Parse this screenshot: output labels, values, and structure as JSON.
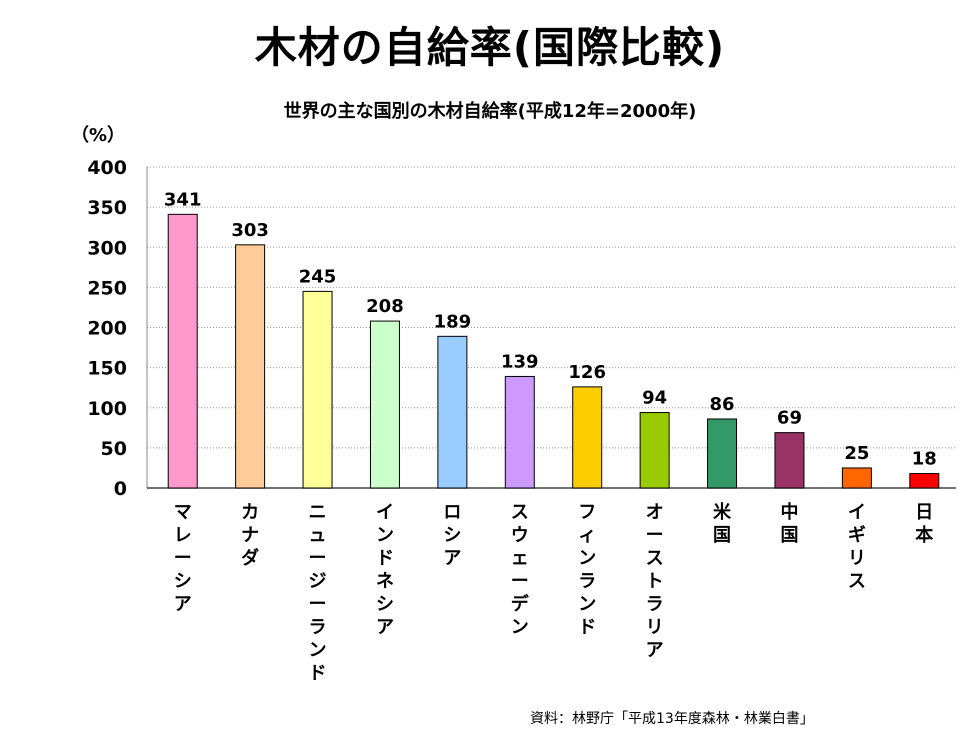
{
  "title": "木材の自給率(国際比較)",
  "subtitle": "世界の主な国別の木材自給率(平成12年=2000年)",
  "source": "資料：林野庁「平成13年度森林・林業白書」",
  "chart_data": {
    "type": "bar",
    "unit_label": "（%）",
    "categories": [
      "マレーシア",
      "カナダ",
      "ニュージーランド",
      "インドネシア",
      "ロシア",
      "スウェーデン",
      "フィンランド",
      "オーストラリア",
      "米国",
      "中国",
      "イギリス",
      "日本"
    ],
    "values": [
      341,
      303,
      245,
      208,
      189,
      139,
      126,
      94,
      86,
      69,
      25,
      18
    ],
    "colors": [
      "#ff99cc",
      "#ffcc99",
      "#ffff99",
      "#ccffcc",
      "#99ccff",
      "#cc99ff",
      "#ffcc00",
      "#99cc00",
      "#339966",
      "#993366",
      "#ff6600",
      "#ff0000"
    ],
    "ylim": [
      0,
      400
    ],
    "yticks": [
      0,
      50,
      100,
      150,
      200,
      250,
      300,
      350,
      400
    ],
    "grid": true,
    "legend": "none"
  }
}
